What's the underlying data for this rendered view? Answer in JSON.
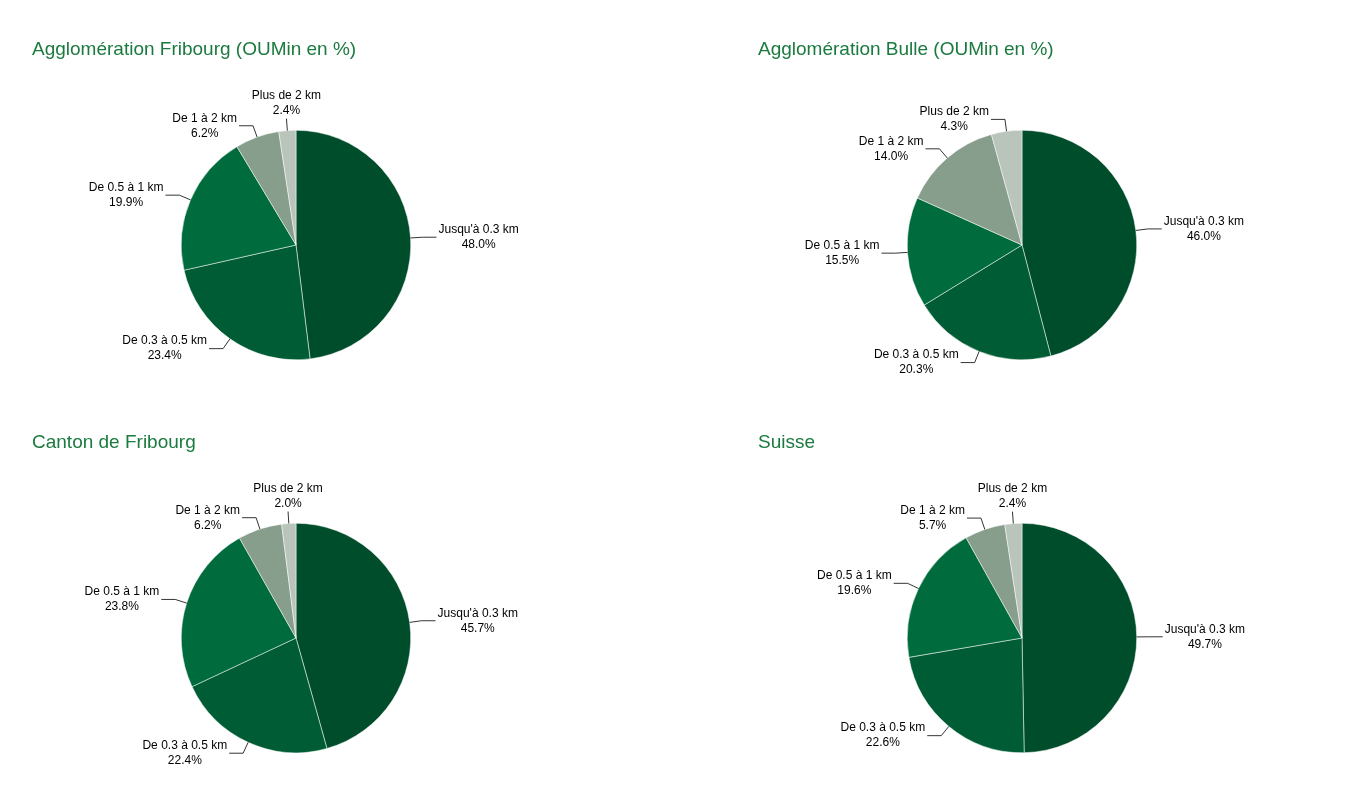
{
  "chart_data": [
    {
      "type": "pie",
      "title": "Agglomération Fribourg (OUMin en %)",
      "categories": [
        "Jusqu'à 0.3 km",
        "De 0.3 à 0.5 km",
        "De 0.5 à 1 km",
        "De 1 à 2 km",
        "Plus de 2 km"
      ],
      "values": [
        48.0,
        23.4,
        19.9,
        6.2,
        2.4
      ],
      "value_labels": [
        "48.0%",
        "23.4%",
        "19.9%",
        "6.2%",
        "2.4%"
      ],
      "colors": [
        "#004d2b",
        "#005c34",
        "#006b3c",
        "#879e8c",
        "#b9c4ba"
      ],
      "legend": false
    },
    {
      "type": "pie",
      "title": "Agglomération Bulle (OUMin en %)",
      "categories": [
        "Jusqu'à 0.3 km",
        "De 0.3 à 0.5 km",
        "De 0.5 à 1 km",
        "De 1 à 2 km",
        "Plus de 2 km"
      ],
      "values": [
        46.0,
        20.3,
        15.5,
        14.0,
        4.3
      ],
      "value_labels": [
        "46.0%",
        "20.3%",
        "15.5%",
        "14.0%",
        "4.3%"
      ],
      "colors": [
        "#004d2b",
        "#005c34",
        "#006b3c",
        "#879e8c",
        "#b9c4ba"
      ],
      "legend": false
    },
    {
      "type": "pie",
      "title": "Canton de Fribourg",
      "categories": [
        "Jusqu'à 0.3 km",
        "De 0.3 à 0.5 km",
        "De 0.5 à 1 km",
        "De 1 à 2 km",
        "Plus de 2 km"
      ],
      "values": [
        45.7,
        22.4,
        23.8,
        6.2,
        2.0
      ],
      "value_labels": [
        "45.7%",
        "22.4%",
        "23.8%",
        "6.2%",
        "2.0%"
      ],
      "colors": [
        "#004d2b",
        "#005c34",
        "#006b3c",
        "#879e8c",
        "#b9c4ba"
      ],
      "legend": false
    },
    {
      "type": "pie",
      "title": "Suisse",
      "categories": [
        "Jusqu'à 0.3 km",
        "De 0.3 à 0.5 km",
        "De 0.5 à 1 km",
        "De 1 à 2 km",
        "Plus de 2 km"
      ],
      "values": [
        49.7,
        22.6,
        19.6,
        5.7,
        2.4
      ],
      "value_labels": [
        "49.7%",
        "22.6%",
        "19.6%",
        "5.7%",
        "2.4%"
      ],
      "colors": [
        "#004d2b",
        "#005c34",
        "#006b3c",
        "#879e8c",
        "#b9c4ba"
      ],
      "legend": false
    }
  ]
}
